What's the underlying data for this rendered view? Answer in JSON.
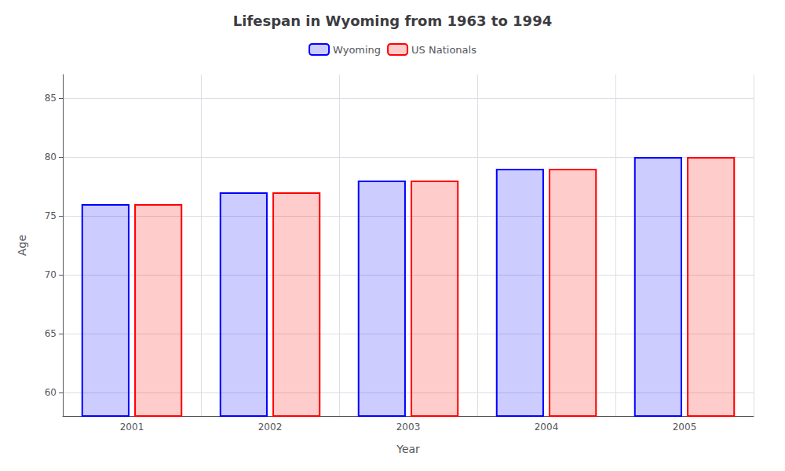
{
  "chart_data": {
    "type": "bar",
    "title": "Lifespan in Wyoming from 1963 to 1994",
    "xlabel": "Year",
    "ylabel": "Age",
    "categories": [
      "2001",
      "2002",
      "2003",
      "2004",
      "2005"
    ],
    "series": [
      {
        "name": "Wyoming",
        "color": "#0000ff",
        "values": [
          76,
          77,
          78,
          79,
          80
        ]
      },
      {
        "name": "US Nationals",
        "color": "#ff0000",
        "values": [
          76,
          77,
          78,
          79,
          80
        ]
      }
    ],
    "ylim": [
      58,
      87
    ],
    "yticks": [
      60,
      65,
      70,
      75,
      80,
      85
    ],
    "grid": true,
    "legend": "top"
  }
}
